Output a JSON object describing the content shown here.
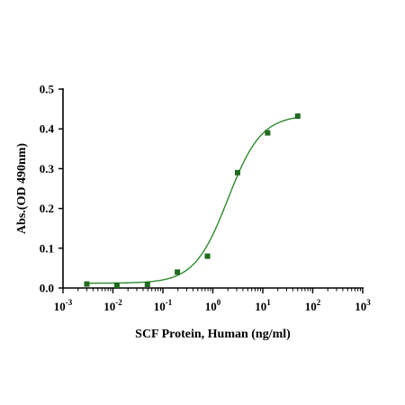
{
  "chart_data": {
    "type": "scatter",
    "title": "",
    "xlabel": "SCF Protein, Human  (ng/ml)",
    "ylabel": "Abs.(OD 490nm)",
    "x_scale": "log",
    "xlim": [
      0.001,
      1000
    ],
    "ylim": [
      0,
      0.5
    ],
    "x_ticks": [
      {
        "value": 0.001,
        "base": "10",
        "exp": "-3"
      },
      {
        "value": 0.01,
        "base": "10",
        "exp": "-2"
      },
      {
        "value": 0.1,
        "base": "10",
        "exp": "-1"
      },
      {
        "value": 1,
        "base": "10",
        "exp": "0"
      },
      {
        "value": 10,
        "base": "10",
        "exp": "1"
      },
      {
        "value": 100,
        "base": "10",
        "exp": "2"
      },
      {
        "value": 1000,
        "base": "10",
        "exp": "3"
      }
    ],
    "y_ticks": [
      {
        "value": 0.0,
        "label": "0.0"
      },
      {
        "value": 0.1,
        "label": "0.1"
      },
      {
        "value": 0.2,
        "label": "0.2"
      },
      {
        "value": 0.3,
        "label": "0.3"
      },
      {
        "value": 0.4,
        "label": "0.4"
      },
      {
        "value": 0.5,
        "label": "0.5"
      }
    ],
    "grid": false,
    "series": [
      {
        "x": [
          0.003,
          0.012,
          0.049,
          0.195,
          0.78,
          3.125,
          12.5,
          50
        ],
        "y": [
          0.01,
          0.007,
          0.009,
          0.04,
          0.08,
          0.29,
          0.39,
          0.432
        ],
        "fit": {
          "model": "4PL",
          "bottom": 0.012,
          "top": 0.435,
          "ec50": 2.0,
          "hill": 1.3
        }
      }
    ],
    "colors": {
      "points": "#1f6b1f",
      "curve": "#2e8b2e",
      "axes": "#000000"
    }
  }
}
